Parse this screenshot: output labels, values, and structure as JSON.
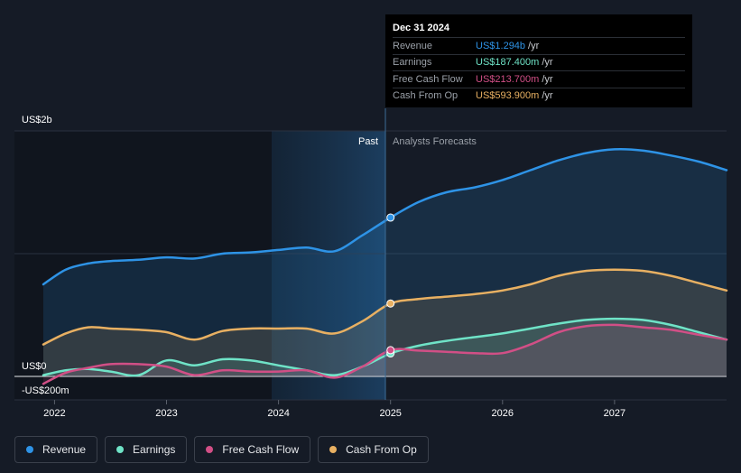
{
  "colors": {
    "background": "#151b26",
    "revenue": "#2e93e6",
    "earnings": "#6fe3c7",
    "free_cash_flow": "#d14f86",
    "cash_from_op": "#e8b062"
  },
  "tooltip": {
    "date": "Dec 31 2024",
    "rows": [
      {
        "label": "Revenue",
        "value": "US$1.294b",
        "unit": "/yr"
      },
      {
        "label": "Earnings",
        "value": "US$187.400m",
        "unit": "/yr"
      },
      {
        "label": "Free Cash Flow",
        "value": "US$213.700m",
        "unit": "/yr"
      },
      {
        "label": "Cash From Op",
        "value": "US$593.900m",
        "unit": "/yr"
      }
    ]
  },
  "legend": [
    {
      "label": "Revenue",
      "key": "revenue"
    },
    {
      "label": "Earnings",
      "key": "earnings"
    },
    {
      "label": "Free Cash Flow",
      "key": "free_cash_flow"
    },
    {
      "label": "Cash From Op",
      "key": "cash_from_op"
    }
  ],
  "chart_data": {
    "type": "area",
    "title": "",
    "ylim": [
      -0.2,
      2.0
    ],
    "y_unit": "USD billions",
    "y_tick_labels": [
      {
        "value": 2.0,
        "label": "US$2b"
      },
      {
        "value": 0.0,
        "label": "US$0"
      },
      {
        "value": -0.2,
        "label": "-US$200m"
      }
    ],
    "xlim": [
      2021.9,
      2028.0
    ],
    "x_ticks": [
      2022,
      2023,
      2024,
      2025,
      2026,
      2027
    ],
    "x_tick_labels": [
      "2022",
      "2023",
      "2024",
      "2025",
      "2026",
      "2027"
    ],
    "past_label": "Past",
    "forecast_label": "Analysts Forecasts",
    "past_end": 2025.0,
    "highlight_start": 2024.0,
    "grid": true,
    "series": [
      {
        "name": "Revenue",
        "key": "revenue",
        "x": [
          2021.9,
          2022.1,
          2022.3,
          2022.5,
          2022.75,
          2023.0,
          2023.25,
          2023.5,
          2023.75,
          2024.0,
          2024.25,
          2024.5,
          2024.75,
          2025.0,
          2025.25,
          2025.5,
          2025.75,
          2026.0,
          2026.25,
          2026.5,
          2026.75,
          2027.0,
          2027.25,
          2027.5,
          2027.75,
          2028.0
        ],
        "values": [
          0.75,
          0.87,
          0.92,
          0.94,
          0.95,
          0.97,
          0.96,
          1.0,
          1.01,
          1.03,
          1.05,
          1.02,
          1.15,
          1.294,
          1.42,
          1.5,
          1.54,
          1.6,
          1.68,
          1.76,
          1.82,
          1.85,
          1.84,
          1.8,
          1.75,
          1.68
        ]
      },
      {
        "name": "Cash From Op",
        "key": "cash_from_op",
        "x": [
          2021.9,
          2022.1,
          2022.3,
          2022.5,
          2022.75,
          2023.0,
          2023.25,
          2023.5,
          2023.75,
          2024.0,
          2024.25,
          2024.5,
          2024.75,
          2025.0,
          2025.25,
          2025.5,
          2025.75,
          2026.0,
          2026.25,
          2026.5,
          2026.75,
          2027.0,
          2027.25,
          2027.5,
          2027.75,
          2028.0
        ],
        "values": [
          0.26,
          0.35,
          0.4,
          0.39,
          0.38,
          0.36,
          0.3,
          0.37,
          0.39,
          0.39,
          0.39,
          0.35,
          0.45,
          0.5939,
          0.63,
          0.65,
          0.67,
          0.7,
          0.75,
          0.82,
          0.86,
          0.87,
          0.86,
          0.82,
          0.76,
          0.7
        ]
      },
      {
        "name": "Earnings",
        "key": "earnings",
        "x": [
          2021.9,
          2022.1,
          2022.3,
          2022.5,
          2022.75,
          2023.0,
          2023.25,
          2023.5,
          2023.75,
          2024.0,
          2024.25,
          2024.5,
          2024.75,
          2025.0,
          2025.25,
          2025.5,
          2025.75,
          2026.0,
          2026.25,
          2026.5,
          2026.75,
          2027.0,
          2027.25,
          2027.5,
          2027.75,
          2028.0
        ],
        "values": [
          0.01,
          0.05,
          0.06,
          0.04,
          0.01,
          0.13,
          0.09,
          0.14,
          0.13,
          0.09,
          0.05,
          0.01,
          0.08,
          0.1874,
          0.25,
          0.29,
          0.32,
          0.35,
          0.39,
          0.43,
          0.46,
          0.47,
          0.46,
          0.42,
          0.36,
          0.3
        ]
      },
      {
        "name": "Free Cash Flow",
        "key": "free_cash_flow",
        "x": [
          2021.9,
          2022.1,
          2022.3,
          2022.5,
          2022.75,
          2023.0,
          2023.25,
          2023.5,
          2023.75,
          2024.0,
          2024.25,
          2024.5,
          2024.75,
          2025.0,
          2025.25,
          2025.5,
          2025.75,
          2026.0,
          2026.25,
          2026.5,
          2026.75,
          2027.0,
          2027.25,
          2027.5,
          2027.75,
          2028.0
        ],
        "values": [
          -0.06,
          0.03,
          0.07,
          0.1,
          0.1,
          0.08,
          0.01,
          0.05,
          0.04,
          0.04,
          0.05,
          -0.01,
          0.08,
          0.2137,
          0.21,
          0.2,
          0.19,
          0.19,
          0.26,
          0.36,
          0.41,
          0.42,
          0.4,
          0.38,
          0.34,
          0.3
        ]
      }
    ]
  }
}
